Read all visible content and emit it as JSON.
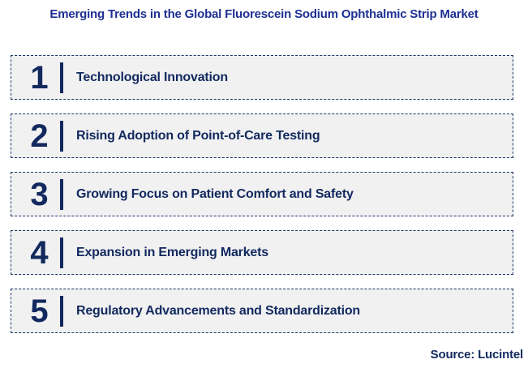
{
  "title": "Emerging Trends in the Global Fluorescein Sodium Ophthalmic Strip Market",
  "items": [
    {
      "number": "1",
      "label": "Technological Innovation"
    },
    {
      "number": "2",
      "label": "Rising Adoption of Point-of-Care Testing"
    },
    {
      "number": "3",
      "label": "Growing Focus on Patient Comfort and Safety"
    },
    {
      "number": "4",
      "label": "Expansion in Emerging Markets"
    },
    {
      "number": "5",
      "label": "Regulatory Advancements and Standardization"
    }
  ],
  "source": "Source: Lucintel",
  "colors": {
    "title": "#1e3092",
    "item_text": "#12295e",
    "border": "#1c3564",
    "item_bg": "#f1f1f2",
    "page_bg": "#ffffff"
  }
}
